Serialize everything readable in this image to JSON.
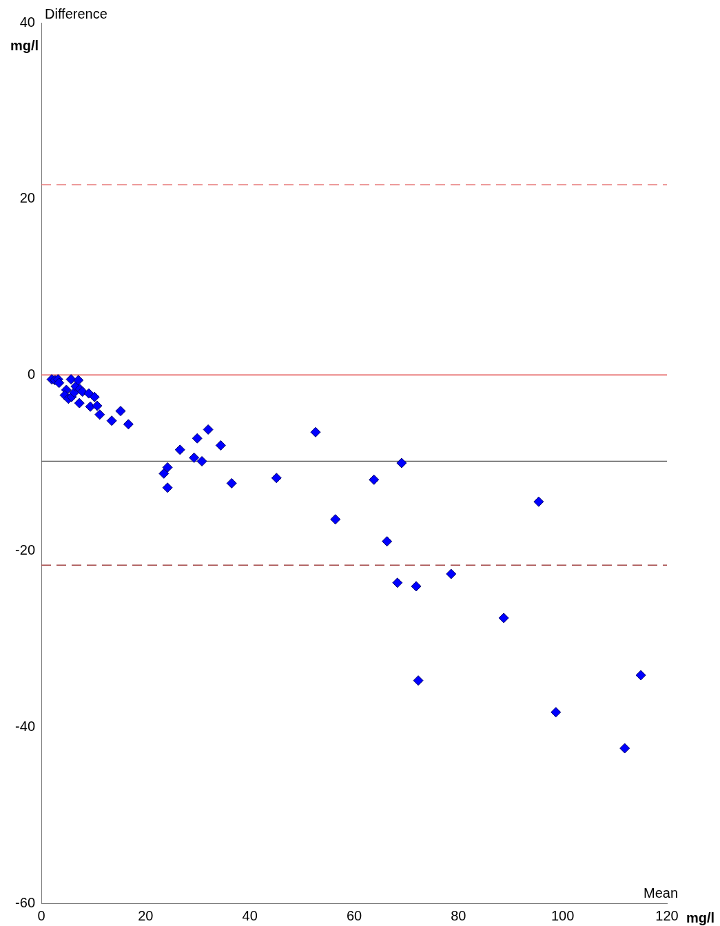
{
  "chart_data": {
    "type": "scatter",
    "xlabel": "Mean",
    "ylabel": "Difference",
    "annotations": [
      "mg/l",
      "mg/l"
    ],
    "marker": "diamond",
    "grid": false,
    "legend": false,
    "xlim": [
      0,
      120
    ],
    "xticks": [
      0,
      20,
      40,
      60,
      80,
      100,
      120
    ],
    "ylim": [
      -60,
      40
    ],
    "yticks": [
      -60,
      -40,
      -20,
      0,
      20,
      40
    ],
    "ref_lines": [
      {
        "axis": "y",
        "value": 0,
        "color": "#e04040",
        "line_style": "solid"
      },
      {
        "axis": "y",
        "value": -9.8,
        "color": "#505050",
        "line_style": "solid"
      },
      {
        "axis": "y",
        "value": 21.6,
        "color": "#e05050",
        "line_style": "dashed"
      },
      {
        "axis": "y",
        "value": -21.6,
        "color": "#a04040",
        "line_style": "dashed"
      }
    ],
    "series": [
      {
        "color": "#0000ff",
        "x": [
          2.0,
          2.6,
          3.2,
          3.4,
          4.8,
          4.5,
          5.2,
          5.7,
          5.8,
          6.3,
          6.6,
          7.1,
          7.3,
          7.4,
          7.9,
          9.1,
          9.4,
          10.2,
          10.7,
          11.2,
          13.5,
          15.2,
          16.7,
          23.5,
          24.2,
          24.2,
          26.6,
          29.3,
          29.9,
          30.8,
          32.0,
          34.4,
          36.5,
          45.1,
          52.6,
          56.4,
          63.8,
          66.3,
          69.1,
          68.3,
          71.9,
          72.3,
          78.6,
          88.7,
          95.4,
          98.7,
          111.9,
          115.0
        ],
        "values": [
          -0.5,
          -0.6,
          -0.5,
          -0.9,
          -1.7,
          -2.3,
          -2.7,
          -0.5,
          -2.5,
          -2.0,
          -1.3,
          -0.6,
          -3.2,
          -1.6,
          -1.9,
          -2.1,
          -3.6,
          -2.5,
          -3.5,
          -4.5,
          -5.2,
          -4.1,
          -5.6,
          -11.2,
          -10.5,
          -12.8,
          -8.5,
          -9.4,
          -7.2,
          -9.8,
          -6.2,
          -8.0,
          -12.3,
          -11.7,
          -6.5,
          -16.4,
          -11.9,
          -18.9,
          -10.0,
          -23.6,
          -24.0,
          -34.7,
          -22.6,
          -27.6,
          -14.4,
          -38.3,
          -42.4,
          -34.1
        ]
      }
    ]
  }
}
